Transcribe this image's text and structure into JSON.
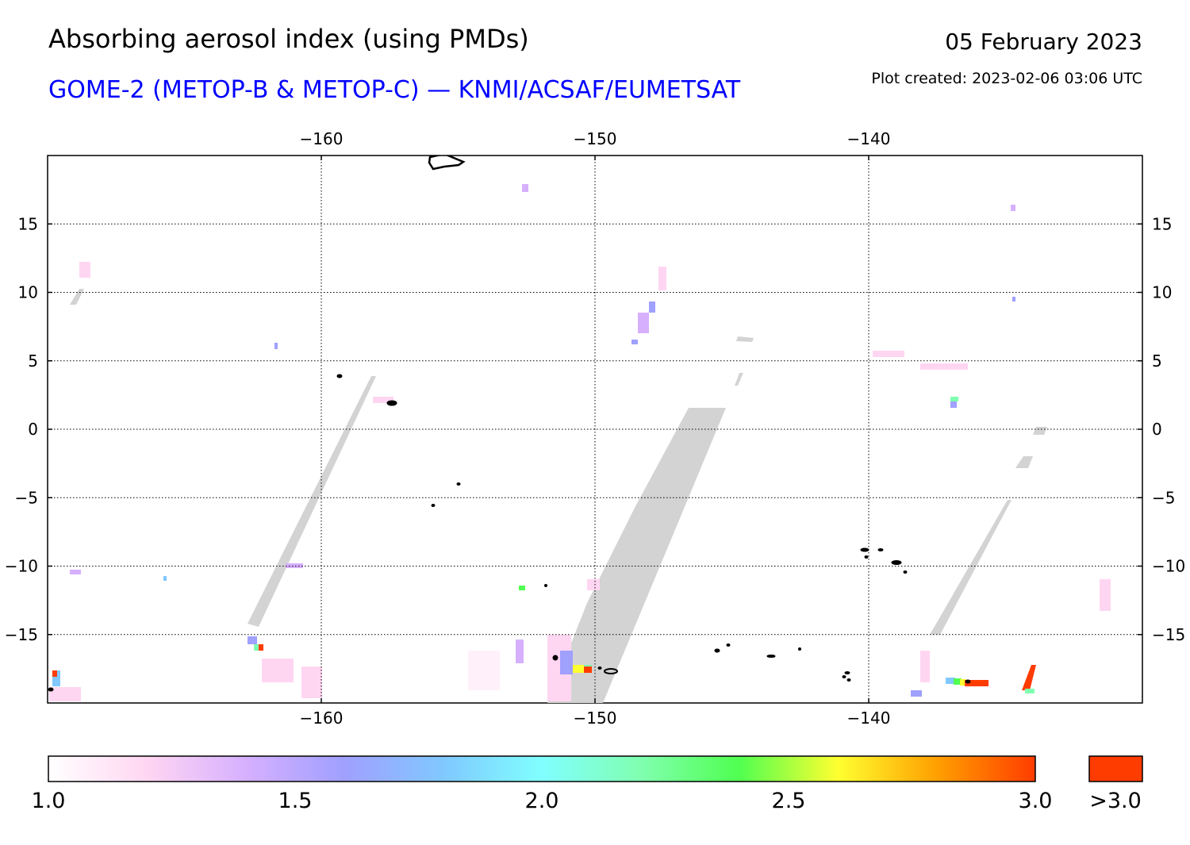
{
  "header": {
    "title": "Absorbing aerosol index (using PMDs)",
    "subtitle": "GOME-2 (METOP-B & METOP-C) — KNMI/ACSAF/EUMETSAT",
    "date": "05 February 2023",
    "created": "Plot created: 2023-02-06 03:06 UTC"
  },
  "map": {
    "lon_range": [
      -170,
      -130
    ],
    "lat_range": [
      -20,
      20
    ],
    "lon_ticks": [
      -160,
      -150,
      -140
    ],
    "lon_tick_labels": [
      "−160",
      "−150",
      "−140"
    ],
    "lat_ticks": [
      15,
      10,
      5,
      0,
      -5,
      -10,
      -15
    ],
    "lat_tick_labels": [
      "15",
      "10",
      "5",
      "0",
      "−5",
      "−10",
      "−15"
    ],
    "no_data_color": "#d3d3d3",
    "grid": true
  },
  "colorbar": {
    "min": 1.0,
    "max": 3.0,
    "tick_labels": [
      "1.0",
      "1.5",
      "2.0",
      "2.5",
      "3.0"
    ],
    "overflow_label": ">3.0",
    "overflow_color": "#ff3c00",
    "colors": [
      "#ffffff",
      "#ffd6f2",
      "#d6b0ff",
      "#a0a0ff",
      "#80c8ff",
      "#80ffff",
      "#80ffb0",
      "#50ff50",
      "#ffff30",
      "#ffa000",
      "#ff3c00"
    ]
  }
}
